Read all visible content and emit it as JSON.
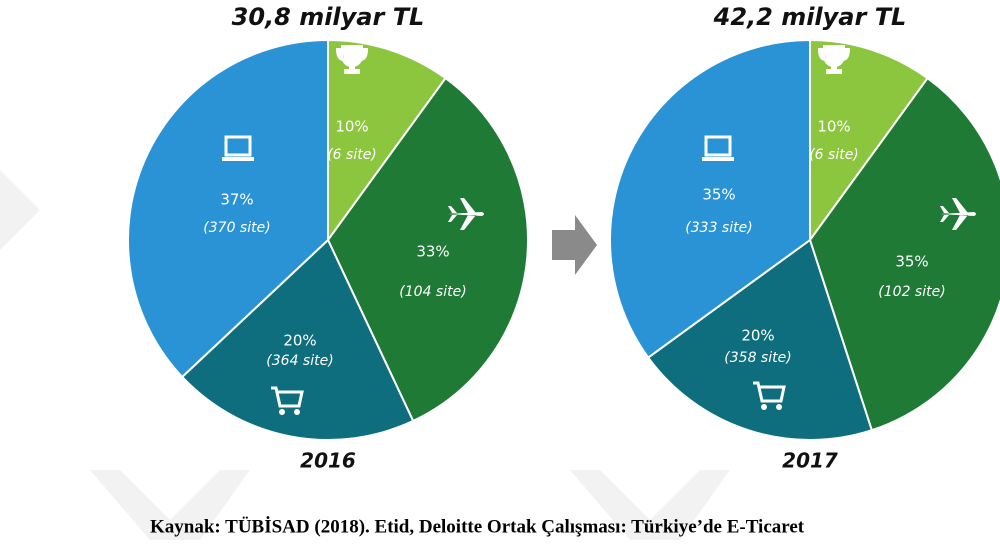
{
  "chart_data": [
    {
      "type": "pie",
      "title": "30,8 milyar TL",
      "xlabel": "2016",
      "values": [
        10,
        33,
        20,
        37
      ],
      "value_labels": [
        "10%",
        "33%",
        "20%",
        "37%"
      ],
      "site_counts": [
        6,
        104,
        364,
        370
      ],
      "site_count_labels": [
        "(6 site)",
        "(104 site)",
        "(364 site)",
        "(370 site)"
      ],
      "colors": [
        "#8cc63e",
        "#1f7a36",
        "#0e6e7e",
        "#2a93d5"
      ]
    },
    {
      "type": "pie",
      "title": "42,2 milyar TL",
      "xlabel": "2017",
      "values": [
        10,
        35,
        20,
        35
      ],
      "value_labels": [
        "10%",
        "35%",
        "20%",
        "35%"
      ],
      "site_counts": [
        6,
        102,
        358,
        333
      ],
      "site_count_labels": [
        "(6 site)",
        "(102 site)",
        "(358 site)",
        "(333 site)"
      ],
      "colors": [
        "#8cc63e",
        "#1f7a36",
        "#0e6e7e",
        "#2a93d5"
      ]
    }
  ],
  "caption": "Kaynak: TÜBİSAD (2018). Etid, Deloitte Ortak Çalışması: Türkiye’de E-Ticaret"
}
